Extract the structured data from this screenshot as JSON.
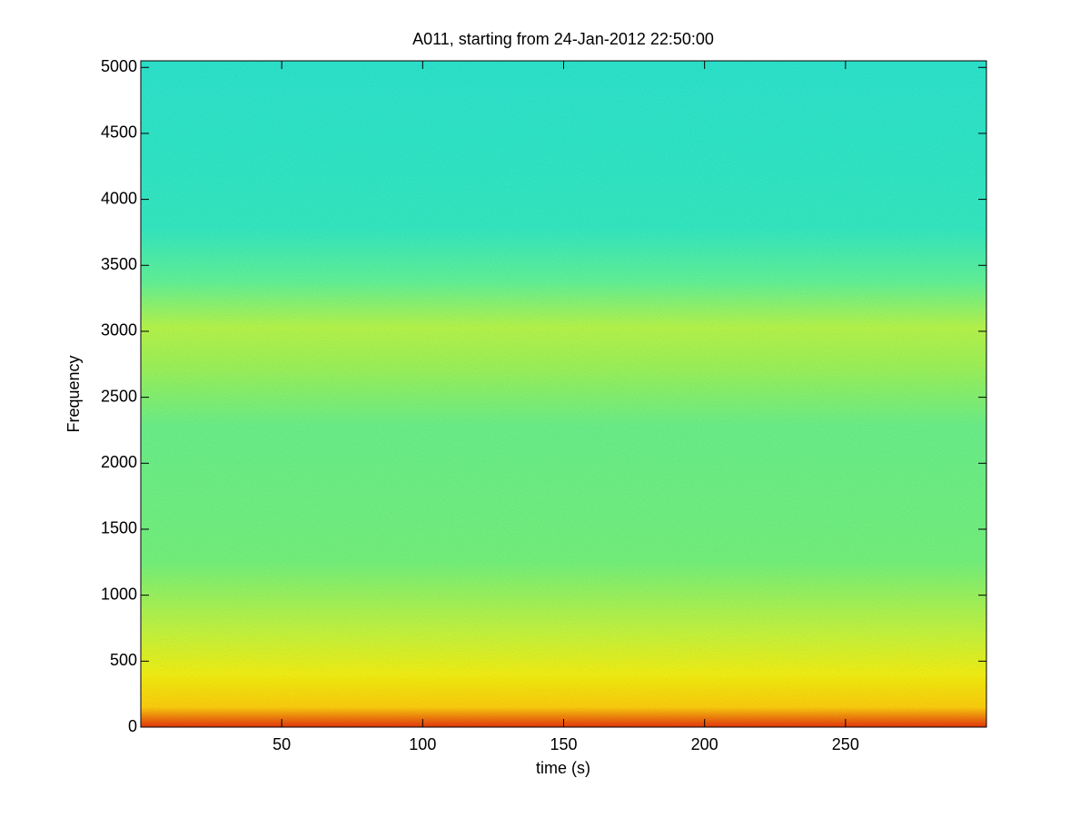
{
  "chart_data": {
    "type": "spectrogram",
    "title": "A011, starting from 24-Jan-2012 22:50:00",
    "xlabel": "time (s)",
    "ylabel": "Frequency",
    "xlim": [
      0,
      300
    ],
    "xticks": [
      50,
      100,
      150,
      200,
      250
    ],
    "ylim": [
      0,
      5050
    ],
    "yticks": [
      0,
      500,
      1000,
      1500,
      2000,
      2500,
      3000,
      3500,
      4000,
      4500,
      5000
    ],
    "colormap": "jet"
  }
}
